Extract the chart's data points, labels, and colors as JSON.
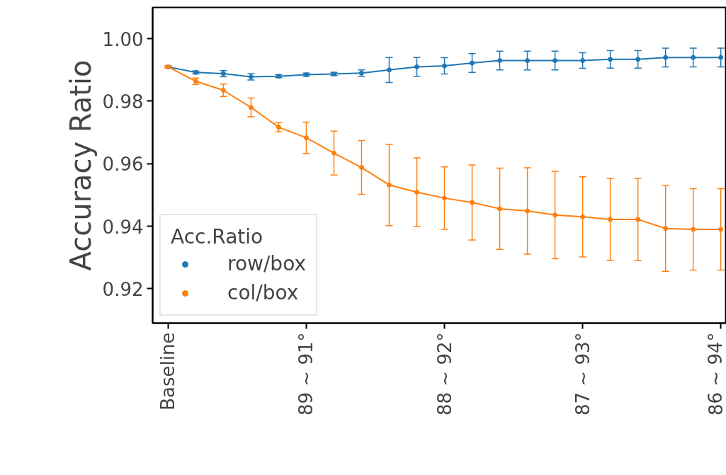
{
  "chart_data": {
    "type": "line",
    "ylabel": "Accuracy Ratio",
    "legend_title": "Acc.Ratio",
    "categories": [
      "Baseline",
      null,
      null,
      null,
      null,
      "89 ~ 91°",
      null,
      null,
      null,
      null,
      "88 ~ 92°",
      null,
      null,
      null,
      null,
      "87 ~ 93°",
      null,
      null,
      null,
      null,
      "86 ~ 94°"
    ],
    "series": [
      {
        "name": "row/box",
        "color": "#1f77b4",
        "values": [
          0.991,
          0.9892,
          0.9888,
          0.9878,
          0.988,
          0.9885,
          0.9887,
          0.989,
          0.99,
          0.991,
          0.9913,
          0.9922,
          0.993,
          0.993,
          0.993,
          0.993,
          0.9934,
          0.9934,
          0.994,
          0.994,
          0.994
        ],
        "errors": [
          0.0003,
          0.0005,
          0.001,
          0.001,
          0.0005,
          0.0005,
          0.0005,
          0.001,
          0.004,
          0.003,
          0.0026,
          0.003,
          0.003,
          0.003,
          0.003,
          0.0025,
          0.0028,
          0.0028,
          0.003,
          0.003,
          0.003
        ]
      },
      {
        "name": "col/box",
        "color": "#ff7f0e",
        "values": [
          0.991,
          0.9864,
          0.9835,
          0.978,
          0.9717,
          0.9683,
          0.9634,
          0.9588,
          0.9532,
          0.9509,
          0.949,
          0.9476,
          0.9456,
          0.9449,
          0.9436,
          0.943,
          0.9422,
          0.9422,
          0.9393,
          0.939,
          0.939
        ],
        "errors": [
          0.0003,
          0.001,
          0.002,
          0.003,
          0.0015,
          0.005,
          0.007,
          0.0086,
          0.013,
          0.011,
          0.01,
          0.012,
          0.013,
          0.0138,
          0.014,
          0.0128,
          0.0131,
          0.0131,
          0.0137,
          0.013,
          0.013
        ]
      }
    ],
    "ylim": [
      0.909,
      1.01
    ],
    "yticks": [
      {
        "value": 0.92,
        "label": "0.92"
      },
      {
        "value": 0.94,
        "label": "0.94"
      },
      {
        "value": 0.96,
        "label": "0.96"
      },
      {
        "value": 0.98,
        "label": "0.98"
      },
      {
        "value": 1.0,
        "label": "1.00"
      }
    ],
    "legend": "bottom left",
    "grid": false,
    "marker": "circle",
    "line_style": "solid"
  }
}
